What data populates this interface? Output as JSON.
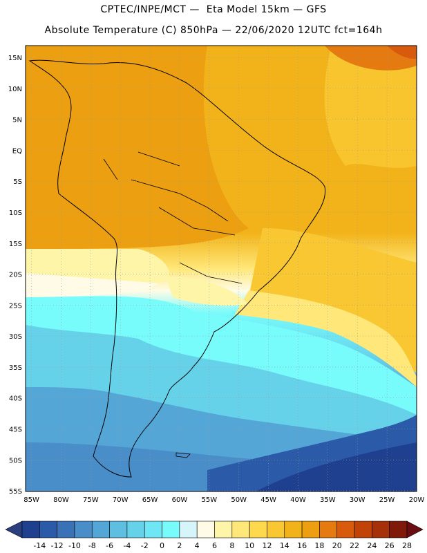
{
  "header": {
    "line1": "CPTEC/INPE/MCT —  Eta Model 15km — GFS",
    "line2": "Absolute Temperature (C) 850hPa — 22/06/2020 12UTC fct=164h"
  },
  "map": {
    "region": "South America",
    "lat_labels": [
      "15N",
      "10N",
      "5N",
      "EQ",
      "5S",
      "10S",
      "15S",
      "20S",
      "25S",
      "30S",
      "35S",
      "40S",
      "45S",
      "50S",
      "55S"
    ],
    "lon_labels": [
      "85W",
      "80W",
      "75W",
      "70W",
      "65W",
      "60W",
      "55W",
      "50W",
      "45W",
      "40W",
      "35W",
      "30W",
      "25W",
      "20W"
    ],
    "lat_range": [
      15,
      -57
    ],
    "lon_range": [
      -86,
      -20
    ],
    "grid": "dotted"
  },
  "colorbar": {
    "labels": [
      "-14",
      "-12",
      "-10",
      "-8",
      "-6",
      "-4",
      "-2",
      "0",
      "2",
      "4",
      "6",
      "8",
      "10",
      "12",
      "14",
      "16",
      "18",
      "20",
      "22",
      "24",
      "26",
      "28"
    ],
    "colors": [
      "#1f3f8f",
      "#2b5aa8",
      "#3a72b8",
      "#4a8ec9",
      "#54a6d6",
      "#5fbfe0",
      "#66d2ea",
      "#6fe6f4",
      "#78fbfb",
      "#d6f5fa",
      "#fffbe6",
      "#fff5a8",
      "#ffe779",
      "#ffd94d",
      "#f8c732",
      "#f2b31a",
      "#ec9f10",
      "#e57a10",
      "#d85a0c",
      "#c24308",
      "#a5300a",
      "#7f1a0a"
    ]
  }
}
